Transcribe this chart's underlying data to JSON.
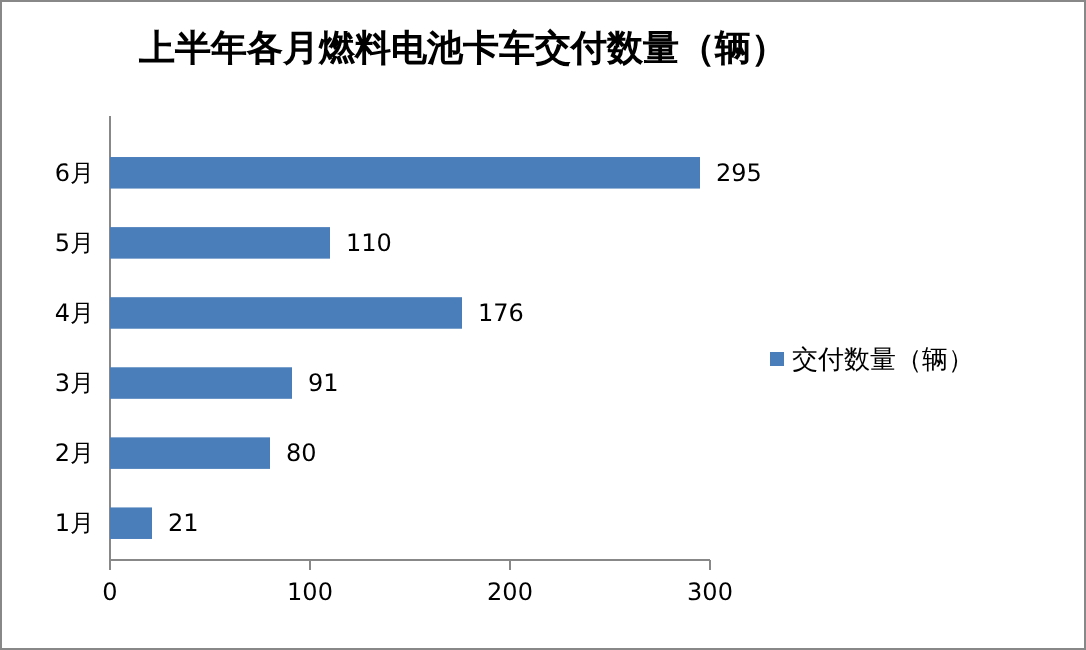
{
  "chart_data": {
    "type": "bar",
    "orientation": "horizontal",
    "title": "上半年各月燃料电池卡车交付数量（辆）",
    "categories": [
      "6月",
      "5月",
      "4月",
      "3月",
      "2月",
      "1月"
    ],
    "series": [
      {
        "name": "交付数量（辆）",
        "color": "#4a7ebb",
        "values": [
          295,
          110,
          176,
          91,
          80,
          21
        ]
      }
    ],
    "xlim": [
      0,
      300
    ],
    "xticks": [
      0,
      100,
      200,
      300
    ],
    "data_labels": true,
    "legend": "right",
    "grid": false
  }
}
